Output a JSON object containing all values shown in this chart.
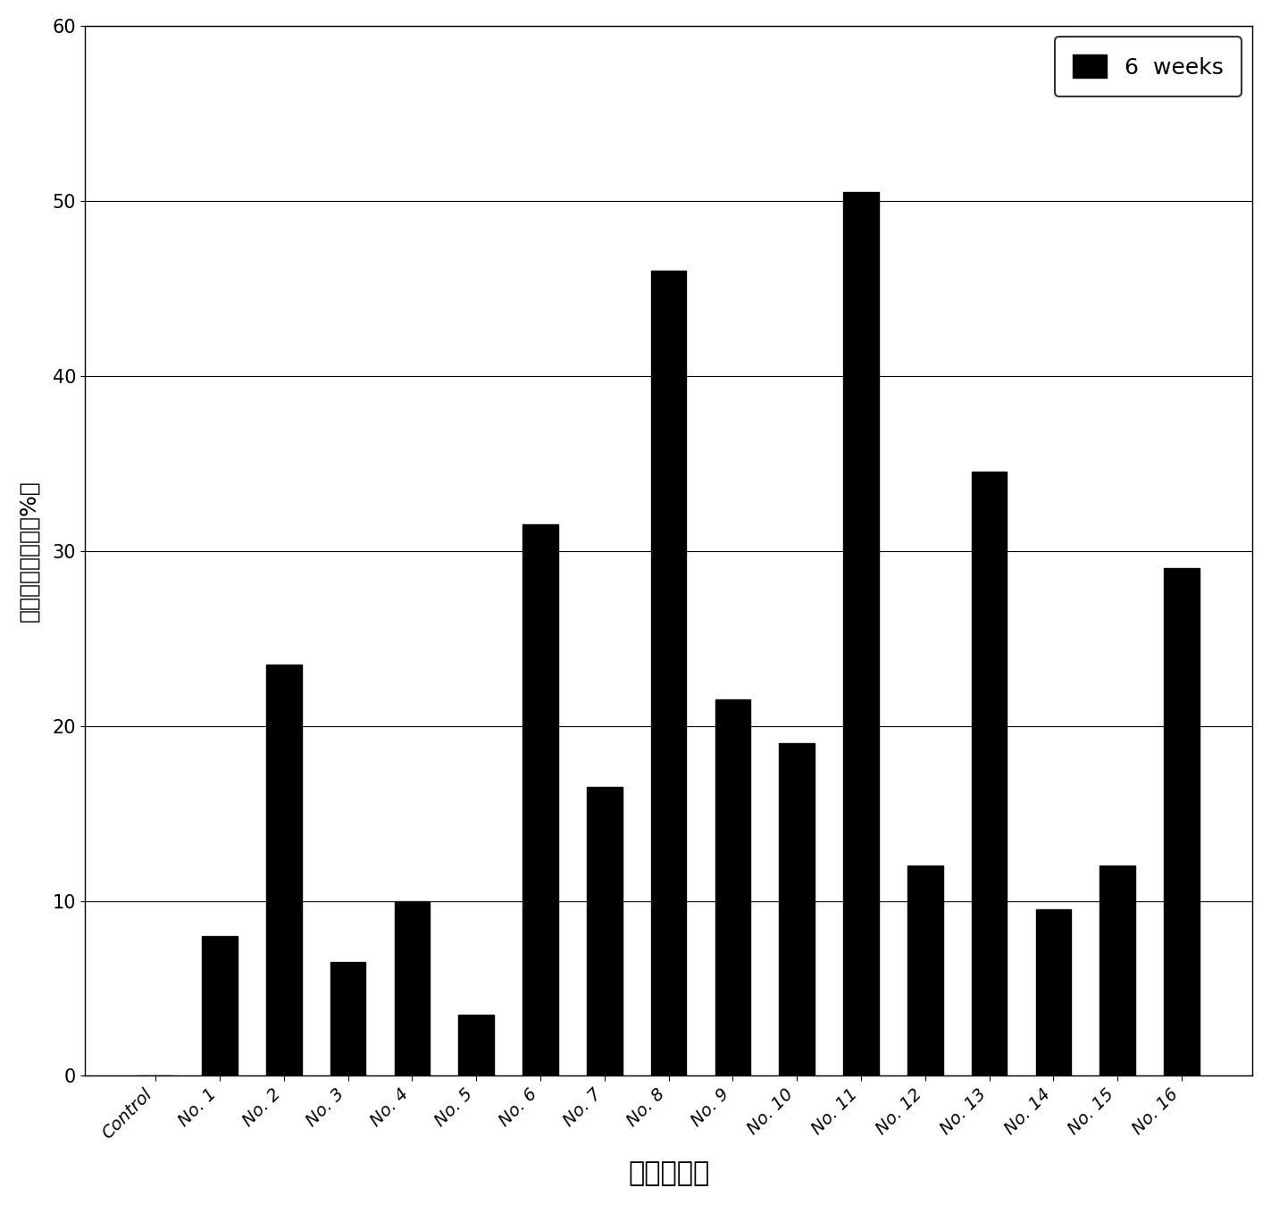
{
  "categories": [
    "Control",
    "No. 1",
    "No. 2",
    "No. 3",
    "No. 4",
    "No. 5",
    "No. 6",
    "No. 7",
    "No. 8",
    "No. 9",
    "No. 10",
    "No. 11",
    "No. 12",
    "No. 13",
    "No. 14",
    "No. 15",
    "No. 16"
  ],
  "values": [
    0,
    8.0,
    23.5,
    6.5,
    10.0,
    3.5,
    31.5,
    16.5,
    46.0,
    21.5,
    19.0,
    50.5,
    12.0,
    34.5,
    9.5,
    12.0,
    29.0
  ],
  "bar_color": "#000000",
  "ylabel": "细胞克隆形成率（%）",
  "xlabel": "化合物代号",
  "ylim": [
    0,
    60
  ],
  "yticks": [
    0,
    10,
    20,
    30,
    40,
    50,
    60
  ],
  "legend_label": "6  weeks",
  "legend_color": "#000000",
  "title": "",
  "bar_width": 0.55,
  "figsize": [
    14.23,
    13.49
  ],
  "dpi": 100,
  "xlabel_fontsize": 22,
  "ylabel_fontsize": 18,
  "tick_fontsize": 15,
  "legend_fontsize": 18,
  "xtick_fontsize": 14,
  "grid_color": "#000000",
  "background_color": "#ffffff"
}
